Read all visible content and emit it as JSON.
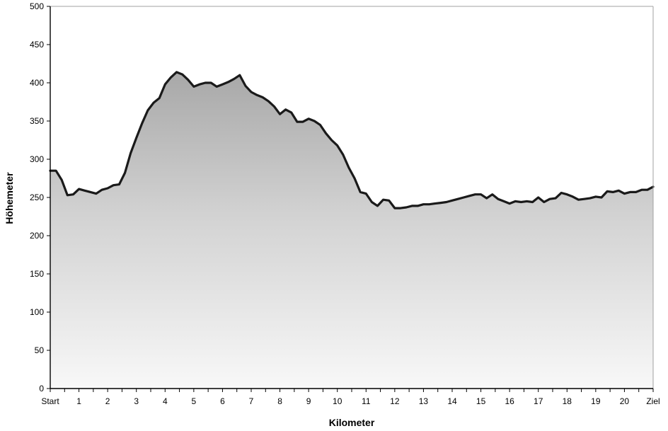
{
  "chart_data": {
    "type": "area",
    "xlabel": "Kilometer",
    "ylabel": "Höhemeter",
    "ylim": [
      0,
      500
    ],
    "xlim": [
      0,
      21
    ],
    "yticks": [
      0,
      50,
      100,
      150,
      200,
      250,
      300,
      350,
      400,
      450,
      500
    ],
    "xticks": [
      {
        "x": 0,
        "label": "Start"
      },
      {
        "x": 1,
        "label": "1"
      },
      {
        "x": 2,
        "label": "2"
      },
      {
        "x": 3,
        "label": "3"
      },
      {
        "x": 4,
        "label": "4"
      },
      {
        "x": 5,
        "label": "5"
      },
      {
        "x": 6,
        "label": "6"
      },
      {
        "x": 7,
        "label": "7"
      },
      {
        "x": 8,
        "label": "8"
      },
      {
        "x": 9,
        "label": "9"
      },
      {
        "x": 10,
        "label": "10"
      },
      {
        "x": 11,
        "label": "11"
      },
      {
        "x": 12,
        "label": "12"
      },
      {
        "x": 13,
        "label": "13"
      },
      {
        "x": 14,
        "label": "14"
      },
      {
        "x": 15,
        "label": "15"
      },
      {
        "x": 16,
        "label": "16"
      },
      {
        "x": 17,
        "label": "17"
      },
      {
        "x": 18,
        "label": "18"
      },
      {
        "x": 19,
        "label": "19"
      },
      {
        "x": 20,
        "label": "20"
      },
      {
        "x": 21,
        "label": "Ziel"
      }
    ],
    "grid": false,
    "fill": "gradient-gray",
    "line_color": "#1a1a1a",
    "series": [
      {
        "x": [
          0,
          0.2,
          0.4,
          0.6,
          0.8,
          1.0,
          1.2,
          1.4,
          1.6,
          1.8,
          2.0,
          2.2,
          2.4,
          2.6,
          2.8,
          3.0,
          3.2,
          3.4,
          3.6,
          3.8,
          4.0,
          4.2,
          4.4,
          4.6,
          4.8,
          5.0,
          5.2,
          5.4,
          5.6,
          5.8,
          6.0,
          6.2,
          6.4,
          6.6,
          6.8,
          7.0,
          7.2,
          7.4,
          7.6,
          7.8,
          8.0,
          8.2,
          8.4,
          8.6,
          8.8,
          9.0,
          9.2,
          9.4,
          9.6,
          9.8,
          10.0,
          10.2,
          10.4,
          10.6,
          10.8,
          11.0,
          11.2,
          11.4,
          11.6,
          11.8,
          12.0,
          12.2,
          12.4,
          12.6,
          12.8,
          13.0,
          13.2,
          13.4,
          13.6,
          13.8,
          14.0,
          14.2,
          14.4,
          14.6,
          14.8,
          15.0,
          15.2,
          15.4,
          15.6,
          15.8,
          16.0,
          16.2,
          16.4,
          16.6,
          16.8,
          17.0,
          17.2,
          17.4,
          17.6,
          17.8,
          18.0,
          18.2,
          18.4,
          18.6,
          18.8,
          19.0,
          19.2,
          19.4,
          19.6,
          19.8,
          20.0,
          20.2,
          20.4,
          20.6,
          20.8,
          21.0
        ],
        "values": [
          285,
          285,
          273,
          253,
          254,
          261,
          259,
          257,
          255,
          260,
          262,
          266,
          267,
          282,
          308,
          328,
          347,
          364,
          374,
          380,
          398,
          407,
          414,
          411,
          404,
          395,
          398,
          400,
          400,
          395,
          398,
          401,
          405,
          410,
          396,
          388,
          384,
          381,
          376,
          369,
          359,
          365,
          361,
          349,
          349,
          353,
          350,
          345,
          334,
          325,
          318,
          306,
          289,
          275,
          257,
          255,
          244,
          239,
          247,
          246,
          236,
          236,
          237,
          239,
          239,
          241,
          241,
          242,
          243,
          244,
          246,
          248,
          250,
          252,
          254,
          254,
          249,
          254,
          248,
          245,
          242,
          245,
          244,
          245,
          244,
          250,
          244,
          248,
          249,
          256,
          254,
          251,
          247,
          248,
          249,
          251,
          250,
          258,
          257,
          259,
          255,
          257,
          257,
          260,
          260,
          264
        ]
      }
    ]
  }
}
